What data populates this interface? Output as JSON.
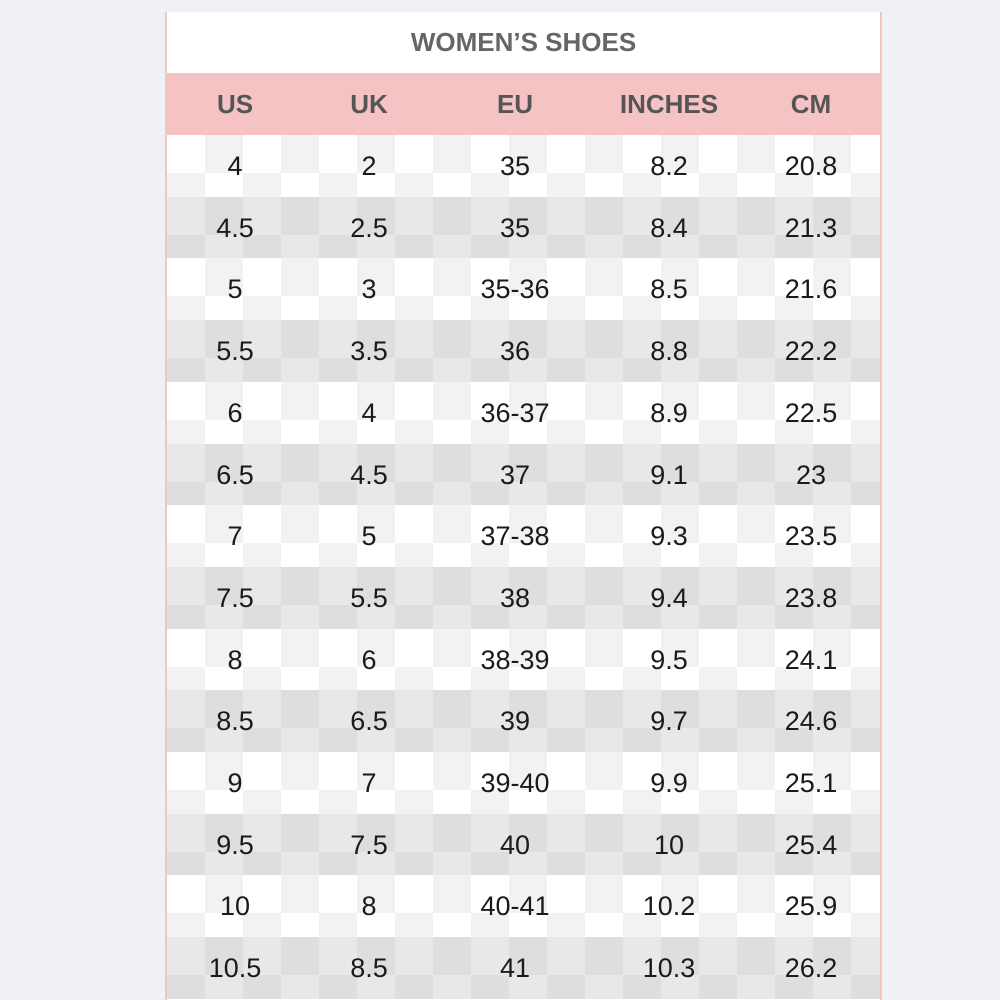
{
  "title": "WOMEN’S SHOES",
  "table": {
    "header": [
      "US",
      "UK",
      "EU",
      "INCHES",
      "CM"
    ],
    "rows": [
      [
        "4",
        "2",
        "35",
        "8.2",
        "20.8"
      ],
      [
        "4.5",
        "2.5",
        "35",
        "8.4",
        "21.3"
      ],
      [
        "5",
        "3",
        "35-36",
        "8.5",
        "21.6"
      ],
      [
        "5.5",
        "3.5",
        "36",
        "8.8",
        "22.2"
      ],
      [
        "6",
        "4",
        "36-37",
        "8.9",
        "22.5"
      ],
      [
        "6.5",
        "4.5",
        "37",
        "9.1",
        "23"
      ],
      [
        "7",
        "5",
        "37-38",
        "9.3",
        "23.5"
      ],
      [
        "7.5",
        "5.5",
        "38",
        "9.4",
        "23.8"
      ],
      [
        "8",
        "6",
        "38-39",
        "9.5",
        "24.1"
      ],
      [
        "8.5",
        "6.5",
        "39",
        "9.7",
        "24.6"
      ],
      [
        "9",
        "7",
        "39-40",
        "9.9",
        "25.1"
      ],
      [
        "9.5",
        "7.5",
        "40",
        "10",
        "25.4"
      ],
      [
        "10",
        "8",
        "40-41",
        "10.2",
        "25.9"
      ],
      [
        "10.5",
        "8.5",
        "41",
        "10.3",
        "26.2"
      ]
    ]
  }
}
